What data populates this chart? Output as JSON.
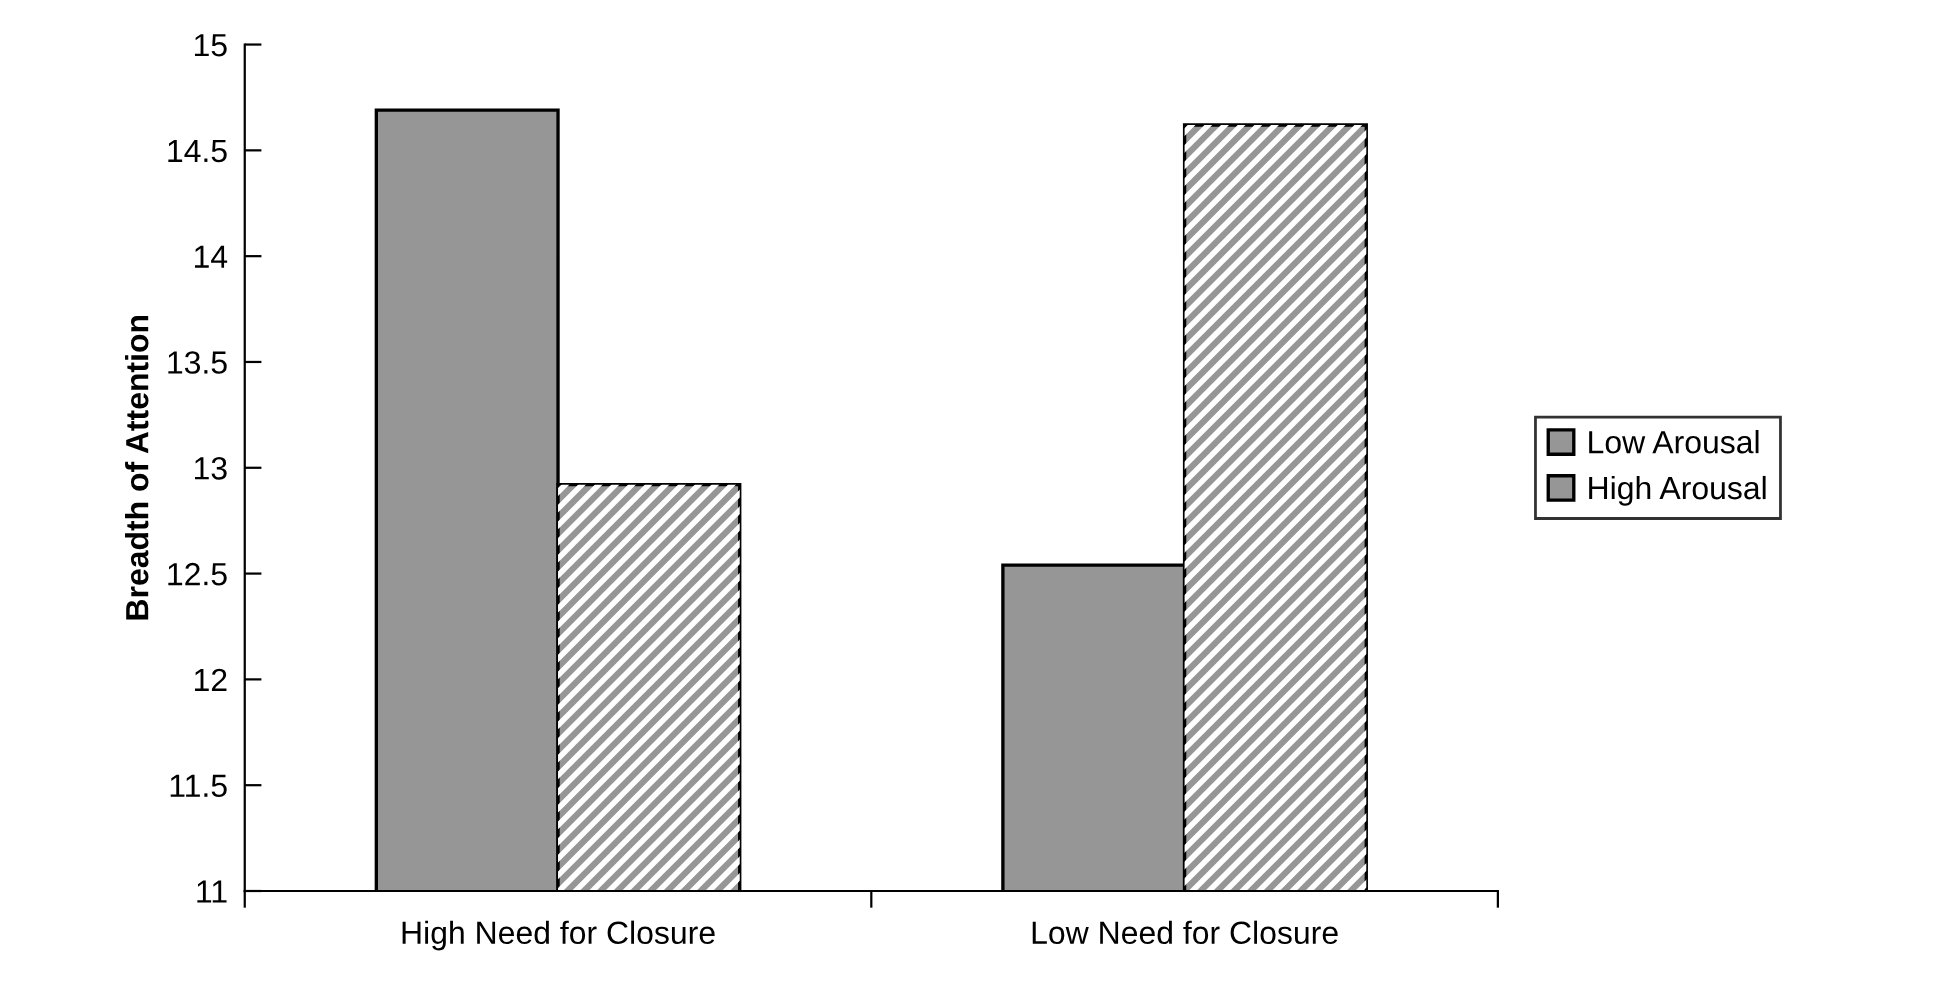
{
  "chart_data": {
    "type": "bar",
    "ylabel": "Breadth of Attention",
    "categories": [
      "High Need for Closure",
      "Low Need for Closure"
    ],
    "series": [
      {
        "name": "Low Arousal",
        "color": "#969696",
        "values": [
          14.69,
          12.54
        ]
      },
      {
        "name": "High Arousal",
        "color": "#969696",
        "values": [
          12.92,
          14.62
        ]
      }
    ],
    "ylim": [
      11,
      15
    ],
    "yticks": [
      11,
      11.5,
      12,
      12.5,
      13,
      13.5,
      14,
      14.5,
      15
    ],
    "grid": false,
    "legend": "right"
  }
}
